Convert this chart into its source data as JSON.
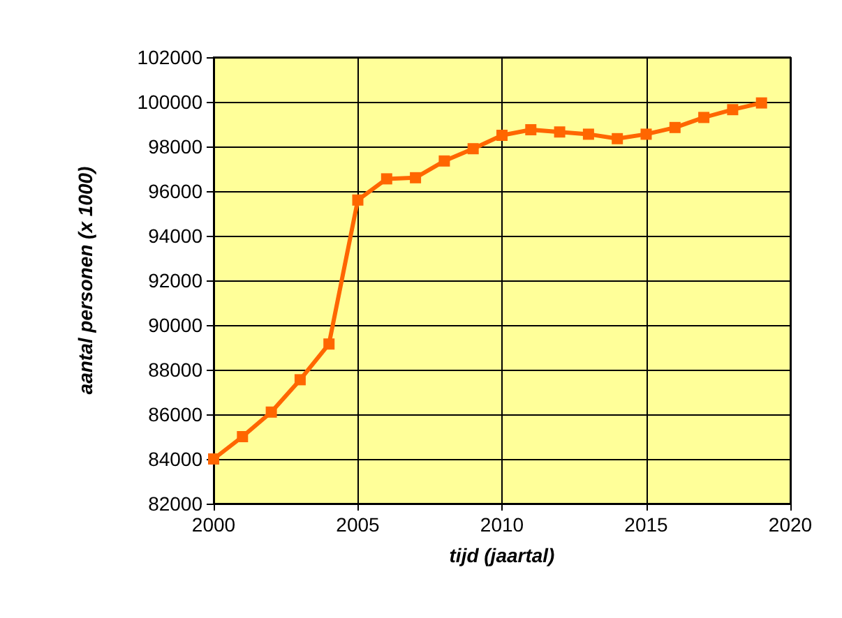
{
  "chart_data": {
    "type": "line",
    "xlabel": "tijd (jaartal)",
    "ylabel": "aantal personen (x 1000)",
    "x": [
      2000,
      2001,
      2002,
      2003,
      2004,
      2005,
      2006,
      2007,
      2008,
      2009,
      2010,
      2011,
      2012,
      2013,
      2014,
      2015,
      2016,
      2017,
      2018,
      2019
    ],
    "series": [
      {
        "color": "#ff6600",
        "values": [
          84000,
          85000,
          86100,
          87550,
          89150,
          95600,
          96550,
          96600,
          97350,
          97900,
          98500,
          98750,
          98650,
          98550,
          98350,
          98550,
          98850,
          99300,
          99650,
          99950
        ]
      }
    ],
    "xlim": [
      2000,
      2020
    ],
    "xticks": [
      2000,
      2005,
      2010,
      2015,
      2020
    ],
    "ylim": [
      82000,
      102000
    ],
    "yticks": [
      82000,
      84000,
      86000,
      88000,
      90000,
      92000,
      94000,
      96000,
      98000,
      100000,
      102000
    ],
    "grid": true,
    "marker": "square",
    "line_style": "solid"
  }
}
